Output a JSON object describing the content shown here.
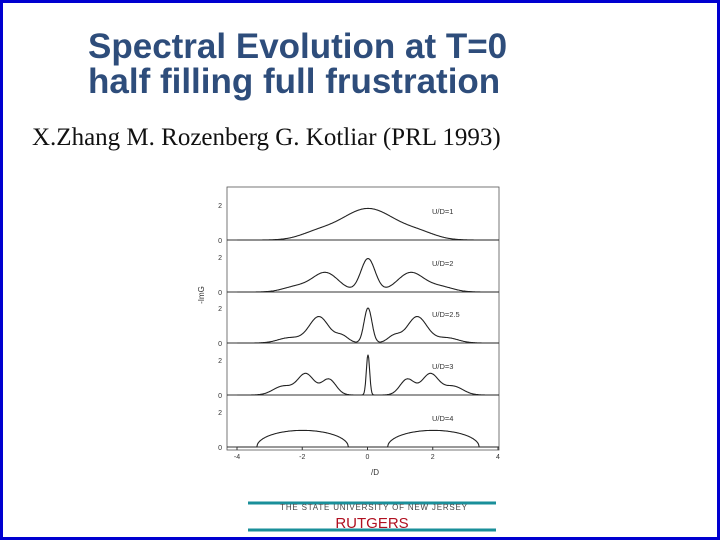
{
  "header": {
    "title_lines": [
      "Spectral Evolution at T=0",
      "half filling full frustration"
    ],
    "subtitle": "X.Zhang M. Rozenberg G. Kotliar (PRL 1993)"
  },
  "figure": {
    "y_axis_label": "-ImG",
    "x_axis_label": "/D",
    "x_ticks": [
      "-4",
      "-2",
      "0",
      "2",
      "4"
    ],
    "panels": [
      {
        "label": "U/D=1",
        "y_ticks": [
          "0",
          "2"
        ]
      },
      {
        "label": "U/D=2",
        "y_ticks": [
          "0",
          "2"
        ]
      },
      {
        "label": "U/D=2.5",
        "y_ticks": [
          "0",
          "2"
        ]
      },
      {
        "label": "U/D=3",
        "y_ticks": [
          "0",
          "2"
        ]
      },
      {
        "label": "U/D=4",
        "y_ticks": [
          "0",
          "2"
        ]
      }
    ]
  },
  "footer": {
    "university": "THE STATE UNIVERSITY OF NEW JERSEY",
    "name": "RUTGERS"
  }
}
